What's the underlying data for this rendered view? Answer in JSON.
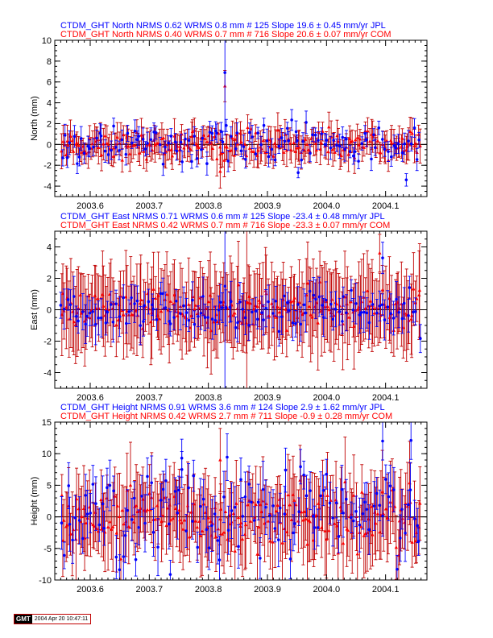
{
  "colors": {
    "jpl": "#0000ff",
    "com": "#ff0000",
    "errbar_com": "#c00000"
  },
  "footer": {
    "logo": "GMT",
    "date": "2004 Apr 20 10:47:11"
  },
  "chart_data": [
    {
      "type": "scatter",
      "ylabel": "North (mm)",
      "ylim": [
        -5,
        10
      ],
      "yticks": [
        -4,
        -2,
        0,
        2,
        4,
        6,
        8,
        10
      ],
      "xlim": [
        2003.54,
        2004.17
      ],
      "xticks": [
        "2003.6",
        "2003.7",
        "2003.8",
        "2003.9",
        "2004.0",
        "2004.1"
      ],
      "title_jpl": "CTDM_GHT North NRMS 0.62 WRMS  0.8 mm # 125 Slope   19.6 ±  0.45 mm/yr JPL",
      "title_com": "CTDM_GHT North NRMS 0.40 WRMS  0.7 mm # 716 Slope   20.6 ±  0.07 mm/yr COM",
      "series": [
        {
          "name": "JPL",
          "n": 125,
          "wrms": 0.8,
          "err": 0.9,
          "outliers": [
            [
              2003.828,
              6.9,
              6.0
            ],
            [
              2004.135,
              -3.4,
              0.6
            ],
            [
              2003.952,
              -2.7,
              0.5
            ]
          ]
        },
        {
          "name": "COM",
          "n": 716,
          "wrms": 0.7,
          "err": 1.3,
          "outliers": [
            [
              2003.828,
              5.6,
              1.5
            ],
            [
              2003.82,
              -2.6,
              1.6
            ]
          ]
        }
      ]
    },
    {
      "type": "scatter",
      "ylabel": "East (mm)",
      "ylim": [
        -5,
        5
      ],
      "yticks": [
        -4,
        -2,
        0,
        2,
        4
      ],
      "xlim": [
        2003.54,
        2004.17
      ],
      "xticks": [
        "2003.6",
        "2003.7",
        "2003.8",
        "2003.9",
        "2004.0",
        "2004.1"
      ],
      "title_jpl": "CTDM_GHT East NRMS 0.71 WRMS  0.6 mm # 125 Slope  -23.4 ±  0.48 mm/yr JPL",
      "title_com": "CTDM_GHT East NRMS 0.42 WRMS  0.7 mm # 716 Slope  -23.3 ±  0.07 mm/yr COM",
      "series": [
        {
          "name": "JPL",
          "n": 125,
          "wrms": 0.6,
          "err": 1.0,
          "outliers": [
            [
              2004.095,
              3.3,
              1.0
            ],
            [
              2003.828,
              1.5,
              7.0
            ]
          ]
        },
        {
          "name": "COM",
          "n": 716,
          "wrms": 0.7,
          "err": 2.3,
          "outliers": [
            [
              2004.09,
              3.6,
              1.2
            ],
            [
              2003.865,
              0.5,
              6.0
            ]
          ]
        }
      ]
    },
    {
      "type": "scatter",
      "ylabel": "Height (mm)",
      "ylim": [
        -10,
        15
      ],
      "yticks": [
        -10,
        -5,
        0,
        5,
        10,
        15
      ],
      "xlim": [
        2003.54,
        2004.17
      ],
      "xticks": [
        "2003.6",
        "2003.7",
        "2003.8",
        "2003.9",
        "2004.0",
        "2004.1"
      ],
      "title_jpl": "CTDM_GHT Height NRMS 0.91 WRMS  3.6 mm # 124 Slope    2.9 ±  1.62 mm/yr JPL",
      "title_com": "CTDM_GHT Height NRMS 0.42 WRMS  2.7 mm # 711 Slope   -0.9 ±  0.28 mm/yr COM",
      "series": [
        {
          "name": "JPL",
          "n": 124,
          "wrms": 3.6,
          "err": 3.5,
          "outliers": [
            [
              2004.095,
              12.0,
              3.0
            ],
            [
              2004.143,
              12.1,
              3.0
            ],
            [
              2003.755,
              9.3,
              3.0
            ]
          ]
        },
        {
          "name": "COM",
          "n": 711,
          "wrms": 2.7,
          "err": 5.5,
          "outliers": [
            [
              2003.82,
              9.0,
              5.0
            ]
          ]
        }
      ]
    }
  ]
}
